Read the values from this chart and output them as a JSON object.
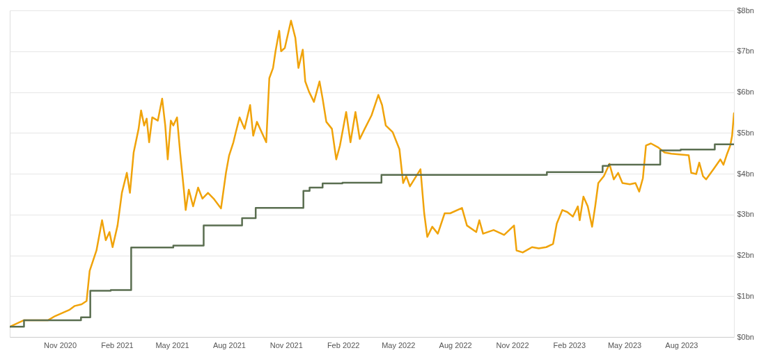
{
  "chart_data": {
    "type": "line",
    "xlim": [
      "2020-08-12",
      "2023-10-25"
    ],
    "xticks": [
      {
        "value": "2020-11-01",
        "label": "Nov 2020"
      },
      {
        "value": "2021-02-01",
        "label": "Feb 2021"
      },
      {
        "value": "2021-05-01",
        "label": "May 2021"
      },
      {
        "value": "2021-08-01",
        "label": "Aug 2021"
      },
      {
        "value": "2021-11-01",
        "label": "Nov 2021"
      },
      {
        "value": "2022-02-01",
        "label": "Feb 2022"
      },
      {
        "value": "2022-05-01",
        "label": "May 2022"
      },
      {
        "value": "2022-08-01",
        "label": "Aug 2022"
      },
      {
        "value": "2022-11-01",
        "label": "Nov 2022"
      },
      {
        "value": "2023-02-01",
        "label": "Feb 2023"
      },
      {
        "value": "2023-05-01",
        "label": "May 2023"
      },
      {
        "value": "2023-08-01",
        "label": "Aug 2023"
      }
    ],
    "ylim": [
      0,
      8
    ],
    "yticks": [
      {
        "value": 0,
        "label": "$0bn"
      },
      {
        "value": 1,
        "label": "$1bn"
      },
      {
        "value": 2,
        "label": "$2bn"
      },
      {
        "value": 3,
        "label": "$3bn"
      },
      {
        "value": 4,
        "label": "$4bn"
      },
      {
        "value": 5,
        "label": "$5bn"
      },
      {
        "value": 6,
        "label": "$6bn"
      },
      {
        "value": 7,
        "label": "$7bn"
      },
      {
        "value": 8,
        "label": "$8bn"
      }
    ],
    "grid": "y",
    "series": [
      {
        "color": "#f0a30a",
        "x": [
          "2020-08-12",
          "2020-09-04",
          "2020-10-13",
          "2020-10-24",
          "2020-11-16",
          "2020-11-25",
          "2020-12-06",
          "2020-12-14",
          "2020-12-19",
          "2020-12-30",
          "2021-01-08",
          "2021-01-14",
          "2021-01-20",
          "2021-01-25",
          "2021-02-02",
          "2021-02-09",
          "2021-02-17",
          "2021-02-22",
          "2021-02-28",
          "2021-03-08",
          "2021-03-12",
          "2021-03-17",
          "2021-03-21",
          "2021-03-25",
          "2021-03-30",
          "2021-04-08",
          "2021-04-15",
          "2021-04-20",
          "2021-04-24",
          "2021-04-29",
          "2021-05-03",
          "2021-05-09",
          "2021-05-14",
          "2021-05-20",
          "2021-05-23",
          "2021-05-28",
          "2021-06-04",
          "2021-06-12",
          "2021-06-19",
          "2021-06-28",
          "2021-07-07",
          "2021-07-19",
          "2021-07-27",
          "2021-08-01",
          "2021-08-08",
          "2021-08-12",
          "2021-08-18",
          "2021-08-26",
          "2021-09-04",
          "2021-09-09",
          "2021-09-15",
          "2021-09-30",
          "2021-10-05",
          "2021-10-11",
          "2021-10-15",
          "2021-10-21",
          "2021-10-24",
          "2021-10-30",
          "2021-11-09",
          "2021-11-16",
          "2021-11-21",
          "2021-11-28",
          "2021-12-02",
          "2021-12-08",
          "2021-12-16",
          "2021-12-25",
          "2021-12-30",
          "2022-01-05",
          "2022-01-14",
          "2022-01-21",
          "2022-01-27",
          "2022-02-06",
          "2022-02-13",
          "2022-02-21",
          "2022-02-28",
          "2022-03-08",
          "2022-03-19",
          "2022-03-30",
          "2022-04-05",
          "2022-04-11",
          "2022-04-22",
          "2022-05-03",
          "2022-05-09",
          "2022-05-14",
          "2022-05-20",
          "2022-06-06",
          "2022-06-12",
          "2022-06-17",
          "2022-06-25",
          "2022-07-04",
          "2022-07-15",
          "2022-07-24",
          "2022-08-12",
          "2022-08-20",
          "2022-09-04",
          "2022-09-09",
          "2022-09-15",
          "2022-10-02",
          "2022-10-19",
          "2022-11-04",
          "2022-11-08",
          "2022-11-18",
          "2022-12-03",
          "2022-12-14",
          "2022-12-26",
          "2023-01-06",
          "2023-01-12",
          "2023-01-21",
          "2023-01-29",
          "2023-02-07",
          "2023-02-15",
          "2023-02-18",
          "2023-02-24",
          "2023-03-03",
          "2023-03-10",
          "2023-03-15",
          "2023-03-20",
          "2023-03-29",
          "2023-04-07",
          "2023-04-14",
          "2023-04-21",
          "2023-04-28",
          "2023-05-10",
          "2023-05-19",
          "2023-05-25",
          "2023-05-31",
          "2023-06-05",
          "2023-06-13",
          "2023-06-24",
          "2023-07-05",
          "2023-07-16",
          "2023-08-13",
          "2023-08-17",
          "2023-08-25",
          "2023-08-30",
          "2023-09-05",
          "2023-09-10",
          "2023-09-22",
          "2023-10-03",
          "2023-10-08",
          "2023-10-14",
          "2023-10-19",
          "2023-10-22",
          "2023-10-25"
        ],
        "values": [
          0.25,
          0.41,
          0.41,
          0.51,
          0.66,
          0.76,
          0.8,
          0.88,
          1.62,
          2.12,
          2.86,
          2.37,
          2.57,
          2.2,
          2.73,
          3.53,
          4.02,
          3.53,
          4.52,
          5.1,
          5.55,
          5.18,
          5.35,
          4.77,
          5.38,
          5.3,
          5.84,
          5.18,
          4.35,
          5.3,
          5.18,
          5.38,
          4.52,
          3.61,
          3.11,
          3.61,
          3.2,
          3.66,
          3.39,
          3.53,
          3.39,
          3.15,
          4.02,
          4.44,
          4.77,
          5.02,
          5.38,
          5.1,
          5.68,
          4.93,
          5.27,
          4.77,
          6.34,
          6.59,
          7.0,
          7.5,
          7.0,
          7.08,
          7.75,
          7.33,
          6.59,
          7.04,
          6.26,
          6.01,
          5.76,
          6.26,
          5.84,
          5.27,
          5.1,
          4.35,
          4.69,
          5.51,
          4.77,
          5.51,
          4.85,
          5.1,
          5.43,
          5.93,
          5.68,
          5.18,
          5.02,
          4.6,
          3.77,
          3.94,
          3.69,
          4.11,
          3.03,
          2.45,
          2.7,
          2.53,
          3.03,
          3.03,
          3.16,
          2.73,
          2.57,
          2.86,
          2.53,
          2.62,
          2.5,
          2.73,
          2.12,
          2.07,
          2.2,
          2.17,
          2.2,
          2.28,
          2.78,
          3.11,
          3.06,
          2.95,
          3.2,
          2.86,
          3.44,
          3.2,
          2.7,
          3.2,
          3.77,
          3.94,
          4.24,
          3.86,
          4.02,
          3.77,
          3.74,
          3.77,
          3.56,
          3.89,
          4.69,
          4.74,
          4.65,
          4.52,
          4.49,
          4.45,
          4.02,
          3.99,
          4.27,
          3.94,
          3.86,
          4.11,
          4.35,
          4.22,
          4.49,
          4.69,
          4.93,
          5.48
        ]
      },
      {
        "type": "step",
        "color": "#5a6e50",
        "x": [
          "2020-08-12",
          "2020-09-04",
          "2020-12-05",
          "2020-12-20",
          "2021-01-22",
          "2021-02-24",
          "2021-05-03",
          "2021-06-21",
          "2021-08-22",
          "2021-09-13",
          "2021-11-29",
          "2021-12-09",
          "2021-12-30",
          "2022-01-31",
          "2022-04-04",
          "2022-12-27",
          "2023-03-27",
          "2023-04-06",
          "2023-06-28",
          "2023-07-31",
          "2023-09-24",
          "2023-10-25"
        ],
        "values": [
          0.25,
          0.41,
          0.48,
          1.13,
          1.15,
          2.19,
          2.24,
          2.73,
          2.91,
          3.16,
          3.58,
          3.66,
          3.76,
          3.78,
          3.97,
          4.04,
          4.19,
          4.22,
          4.57,
          4.59,
          4.72,
          4.72
        ]
      }
    ]
  }
}
